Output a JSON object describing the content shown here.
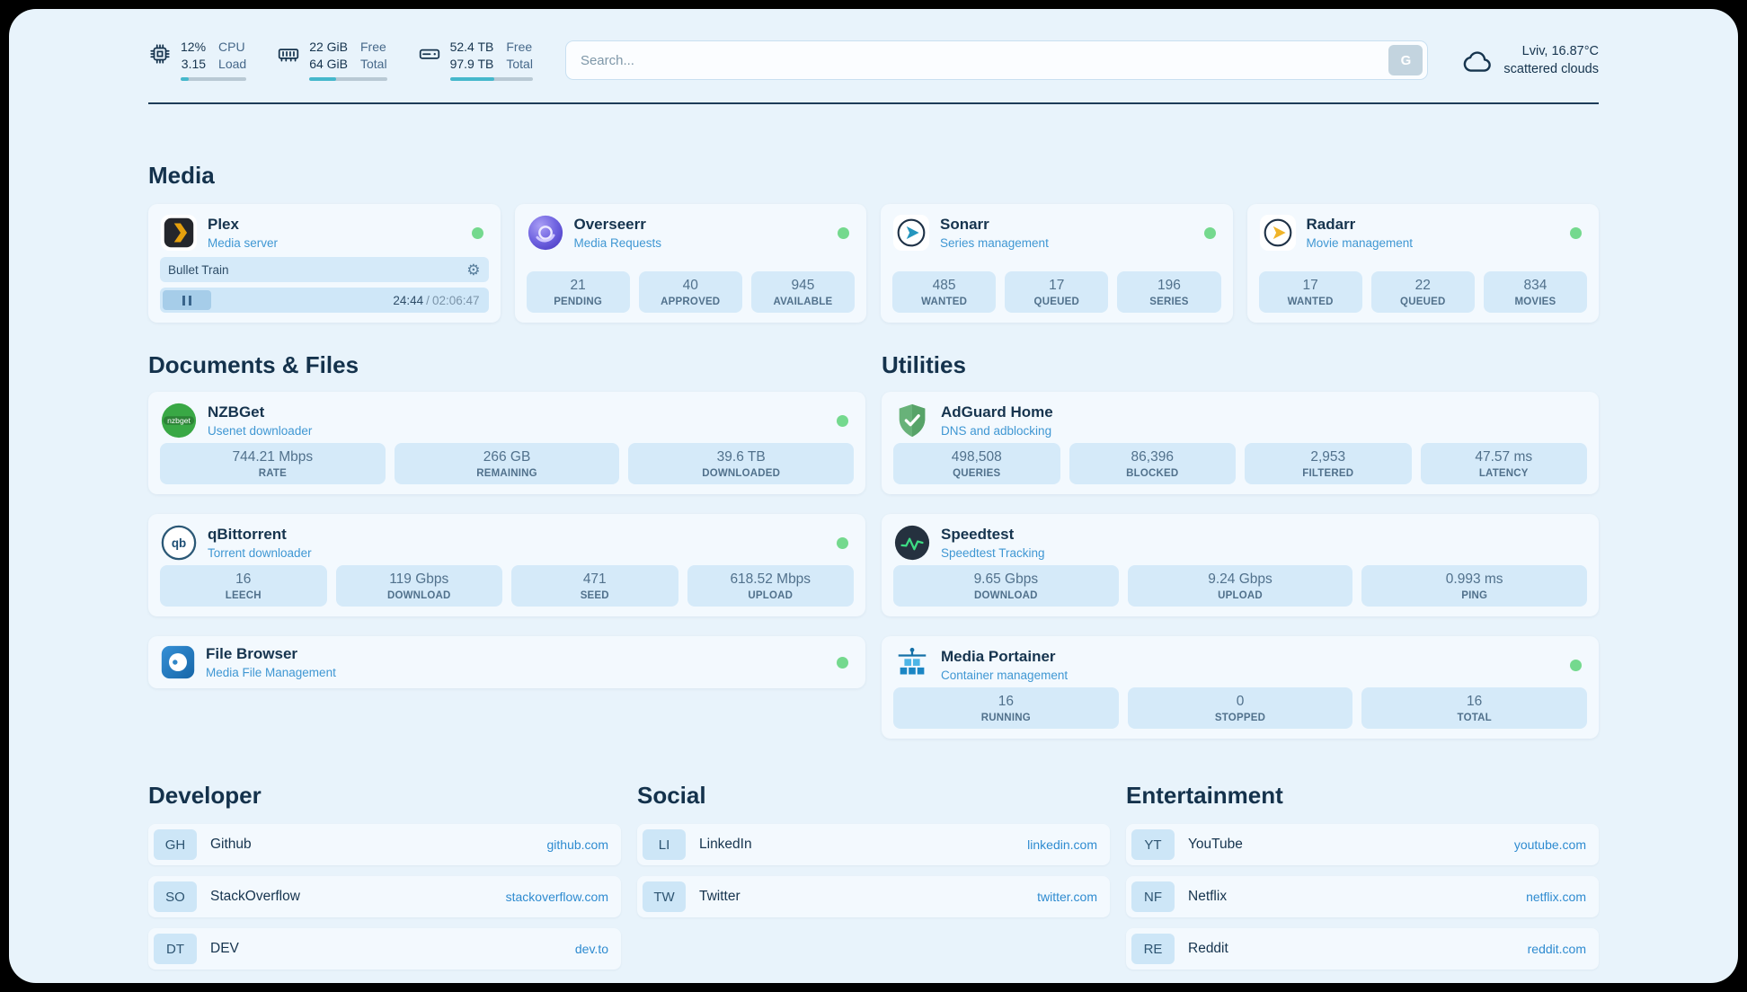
{
  "theme": {
    "panel-bg": "#e8f3fb",
    "card-bg": "#f3f9fe",
    "stat-bg": "#d5eaf9",
    "text-dark": "#16344e",
    "accent-blue": "#3f97d3",
    "link-blue": "#2e8bd0",
    "stat-text": "#51718c",
    "status-green": "#74d98e",
    "bar-teal": "#45b8cc"
  },
  "topbar": {
    "cpu": {
      "values": [
        "12%",
        "3.15"
      ],
      "labels": [
        "CPU",
        "Load"
      ],
      "percent": 12
    },
    "memory": {
      "values": [
        "22 GiB",
        "64 GiB"
      ],
      "labels": [
        "Free",
        "Total"
      ],
      "percent": 34
    },
    "disk": {
      "values": [
        "52.4 TB",
        "97.9 TB"
      ],
      "labels": [
        "Free",
        "Total"
      ],
      "percent": 54
    },
    "search": {
      "placeholder": "Search...",
      "button_label": "G"
    },
    "weather": {
      "location": "Lviv, 16.87°C",
      "condition": "scattered clouds"
    }
  },
  "sections": {
    "media": {
      "title": "Media",
      "plex": {
        "name": "Plex",
        "subtitle": "Media server",
        "now_playing": "Bullet Train",
        "time_current": "24:44",
        "time_separator": "/",
        "time_total": "02:06:47"
      },
      "overseerr": {
        "name": "Overseerr",
        "subtitle": "Media Requests",
        "stats": [
          {
            "value": "21",
            "label": "PENDING"
          },
          {
            "value": "40",
            "label": "APPROVED"
          },
          {
            "value": "945",
            "label": "AVAILABLE"
          }
        ]
      },
      "sonarr": {
        "name": "Sonarr",
        "subtitle": "Series management",
        "stats": [
          {
            "value": "485",
            "label": "WANTED"
          },
          {
            "value": "17",
            "label": "QUEUED"
          },
          {
            "value": "196",
            "label": "SERIES"
          }
        ]
      },
      "radarr": {
        "name": "Radarr",
        "subtitle": "Movie management",
        "stats": [
          {
            "value": "17",
            "label": "WANTED"
          },
          {
            "value": "22",
            "label": "QUEUED"
          },
          {
            "value": "834",
            "label": "MOVIES"
          }
        ]
      }
    },
    "documents": {
      "title": "Documents & Files",
      "nzbget": {
        "name": "NZBGet",
        "subtitle": "Usenet downloader",
        "stats": [
          {
            "value": "744.21 Mbps",
            "label": "RATE"
          },
          {
            "value": "266 GB",
            "label": "REMAINING"
          },
          {
            "value": "39.6 TB",
            "label": "DOWNLOADED"
          }
        ]
      },
      "qbittorrent": {
        "name": "qBittorrent",
        "subtitle": "Torrent downloader",
        "stats": [
          {
            "value": "16",
            "label": "LEECH"
          },
          {
            "value": "119 Gbps",
            "label": "DOWNLOAD"
          },
          {
            "value": "471",
            "label": "SEED"
          },
          {
            "value": "618.52 Mbps",
            "label": "UPLOAD"
          }
        ]
      },
      "filebrowser": {
        "name": "File Browser",
        "subtitle": "Media File Management"
      }
    },
    "utilities": {
      "title": "Utilities",
      "adguard": {
        "name": "AdGuard Home",
        "subtitle": "DNS and adblocking",
        "stats": [
          {
            "value": "498,508",
            "label": "QUERIES"
          },
          {
            "value": "86,396",
            "label": "BLOCKED"
          },
          {
            "value": "2,953",
            "label": "FILTERED"
          },
          {
            "value": "47.57 ms",
            "label": "LATENCY"
          }
        ]
      },
      "speedtest": {
        "name": "Speedtest",
        "subtitle": "Speedtest Tracking",
        "stats": [
          {
            "value": "9.65 Gbps",
            "label": "DOWNLOAD"
          },
          {
            "value": "9.24 Gbps",
            "label": "UPLOAD"
          },
          {
            "value": "0.993 ms",
            "label": "PING"
          }
        ]
      },
      "portainer": {
        "name": "Media Portainer",
        "subtitle": "Container management",
        "stats": [
          {
            "value": "16",
            "label": "RUNNING"
          },
          {
            "value": "0",
            "label": "STOPPED"
          },
          {
            "value": "16",
            "label": "TOTAL"
          }
        ]
      }
    },
    "developer": {
      "title": "Developer",
      "items": [
        {
          "abbr": "GH",
          "name": "Github",
          "link": "github.com"
        },
        {
          "abbr": "SO",
          "name": "StackOverflow",
          "link": "stackoverflow.com"
        },
        {
          "abbr": "DT",
          "name": "DEV",
          "link": "dev.to"
        }
      ]
    },
    "social": {
      "title": "Social",
      "items": [
        {
          "abbr": "LI",
          "name": "LinkedIn",
          "link": "linkedin.com"
        },
        {
          "abbr": "TW",
          "name": "Twitter",
          "link": "twitter.com"
        }
      ]
    },
    "entertainment": {
      "title": "Entertainment",
      "items": [
        {
          "abbr": "YT",
          "name": "YouTube",
          "link": "youtube.com"
        },
        {
          "abbr": "NF",
          "name": "Netflix",
          "link": "netflix.com"
        },
        {
          "abbr": "RE",
          "name": "Reddit",
          "link": "reddit.com"
        }
      ]
    }
  }
}
